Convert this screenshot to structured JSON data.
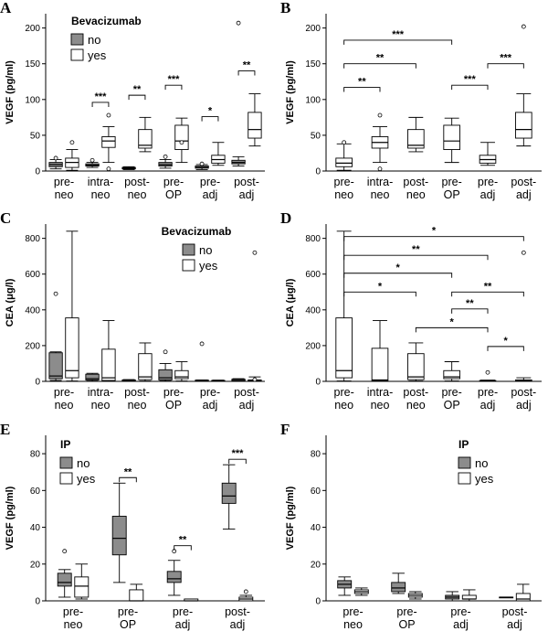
{
  "colors": {
    "group_a": "#8c8c8c",
    "group_b": "#ffffff",
    "stroke": "#000000"
  },
  "chart_data": [
    {
      "panel": "A",
      "type": "box",
      "ylabel": "VEGF (pg/ml)",
      "ylim": [
        0,
        220
      ],
      "yticks": [
        0,
        50,
        100,
        150,
        200
      ],
      "categories": [
        "pre-neo",
        "intra-neo",
        "post-neo",
        "pre-OP",
        "pre-adj",
        "post-adj"
      ],
      "legend": {
        "title": "Bevacizumab",
        "items": [
          "no",
          "yes"
        ],
        "pos": "top-left"
      },
      "series": [
        {
          "name": "no",
          "fill": "#8c8c8c",
          "boxes": [
            {
              "min": 3,
              "q1": 6,
              "med": 9,
              "q3": 12,
              "max": 16,
              "out": [
                18
              ]
            },
            {
              "min": 5,
              "q1": 7,
              "med": 8,
              "q3": 10,
              "max": 12,
              "out": [
                15
              ]
            },
            {
              "min": 2,
              "q1": 3,
              "med": 4,
              "q3": 5,
              "max": 6,
              "out": []
            },
            {
              "min": 4,
              "q1": 7,
              "med": 9,
              "q3": 12,
              "max": 16,
              "out": [
                20
              ]
            },
            {
              "min": 2,
              "q1": 4,
              "med": 5,
              "q3": 7,
              "max": 9,
              "out": [
                10
              ]
            },
            {
              "min": 7,
              "q1": 10,
              "med": 12,
              "q3": 15,
              "max": 20,
              "out": [
                207
              ]
            }
          ]
        },
        {
          "name": "yes",
          "fill": "#ffffff",
          "boxes": [
            {
              "min": 1,
              "q1": 5,
              "med": 12,
              "q3": 18,
              "max": 30,
              "out": [
                40
              ]
            },
            {
              "min": 12,
              "q1": 33,
              "med": 42,
              "q3": 48,
              "max": 62,
              "out": [
                78,
                3
              ]
            },
            {
              "min": 27,
              "q1": 32,
              "med": 36,
              "q3": 58,
              "max": 75,
              "out": []
            },
            {
              "min": 12,
              "q1": 30,
              "med": 42,
              "q3": 64,
              "max": 74,
              "out": [
                40
              ]
            },
            {
              "min": 8,
              "q1": 11,
              "med": 16,
              "q3": 22,
              "max": 40,
              "out": []
            },
            {
              "min": 35,
              "q1": 46,
              "med": 58,
              "q3": 82,
              "max": 108,
              "out": []
            }
          ]
        }
      ],
      "sig": [
        {
          "from": 1,
          "to": 1,
          "mode": "pair",
          "y": 96,
          "stars": "***"
        },
        {
          "from": 2,
          "to": 2,
          "mode": "pair",
          "y": 106,
          "stars": "**"
        },
        {
          "from": 3,
          "to": 3,
          "mode": "pair",
          "y": 120,
          "stars": "***"
        },
        {
          "from": 4,
          "to": 4,
          "mode": "pair",
          "y": 76,
          "stars": "*"
        },
        {
          "from": 5,
          "to": 5,
          "mode": "pair",
          "y": 140,
          "stars": "**"
        }
      ]
    },
    {
      "panel": "B",
      "type": "box",
      "ylabel": "VEGF (pg/ml)",
      "ylim": [
        0,
        220
      ],
      "yticks": [
        0,
        50,
        100,
        150,
        200
      ],
      "categories": [
        "pre-neo",
        "intra-neo",
        "post-neo",
        "pre-OP",
        "pre-adj",
        "post-adj"
      ],
      "series": [
        {
          "name": "all",
          "fill": "#ffffff",
          "boxes": [
            {
              "min": 1,
              "q1": 6,
              "med": 11,
              "q3": 18,
              "max": 38,
              "out": [
                40
              ]
            },
            {
              "min": 12,
              "q1": 32,
              "med": 40,
              "q3": 48,
              "max": 62,
              "out": [
                78,
                3
              ]
            },
            {
              "min": 27,
              "q1": 32,
              "med": 36,
              "q3": 58,
              "max": 75,
              "out": []
            },
            {
              "min": 12,
              "q1": 30,
              "med": 42,
              "q3": 64,
              "max": 74,
              "out": []
            },
            {
              "min": 8,
              "q1": 11,
              "med": 16,
              "q3": 22,
              "max": 40,
              "out": []
            },
            {
              "min": 35,
              "q1": 46,
              "med": 58,
              "q3": 82,
              "max": 108,
              "out": [
                202
              ]
            }
          ]
        }
      ],
      "sig": [
        {
          "from": 0,
          "to": 3,
          "mode": "span",
          "y": 183,
          "stars": "***"
        },
        {
          "from": 0,
          "to": 2,
          "mode": "span",
          "y": 150,
          "stars": "**"
        },
        {
          "from": 0,
          "to": 1,
          "mode": "span",
          "y": 117,
          "stars": "**"
        },
        {
          "from": 3,
          "to": 4,
          "mode": "span",
          "y": 120,
          "stars": "***"
        },
        {
          "from": 4,
          "to": 5,
          "mode": "span",
          "y": 150,
          "stars": "***"
        }
      ]
    },
    {
      "panel": "C",
      "type": "box",
      "ylabel": "CEA (μg/l)",
      "ylim": [
        0,
        880
      ],
      "yticks": [
        0,
        200,
        400,
        600,
        800
      ],
      "categories": [
        "pre-neo",
        "intra-neo",
        "post-neo",
        "pre-OP",
        "pre-adj",
        "post-adj"
      ],
      "legend": {
        "title": "Bevacizumab",
        "items": [
          "no",
          "yes"
        ],
        "pos": "top-right"
      },
      "series": [
        {
          "name": "no",
          "fill": "#8c8c8c",
          "boxes": [
            {
              "min": 5,
              "q1": 15,
              "med": 30,
              "q3": 160,
              "max": 165,
              "out": [
                490
              ]
            },
            {
              "min": 2,
              "q1": 8,
              "med": 15,
              "q3": 40,
              "max": 45,
              "out": []
            },
            {
              "min": 1,
              "q1": 2,
              "med": 4,
              "q3": 8,
              "max": 10,
              "out": []
            },
            {
              "min": 2,
              "q1": 8,
              "med": 20,
              "q3": 65,
              "max": 100,
              "out": [
                165
              ]
            },
            {
              "min": 1,
              "q1": 2,
              "med": 4,
              "q3": 7,
              "max": 8,
              "out": [
                210
              ]
            },
            {
              "min": 1,
              "q1": 3,
              "med": 5,
              "q3": 12,
              "max": 15,
              "out": []
            }
          ]
        },
        {
          "name": "yes",
          "fill": "#ffffff",
          "boxes": [
            {
              "min": 2,
              "q1": 20,
              "med": 60,
              "q3": 355,
              "max": 840,
              "out": []
            },
            {
              "min": 1,
              "q1": 5,
              "med": 20,
              "q3": 180,
              "max": 340,
              "out": []
            },
            {
              "min": 2,
              "q1": 10,
              "med": 25,
              "q3": 155,
              "max": 215,
              "out": []
            },
            {
              "min": 2,
              "q1": 15,
              "med": 25,
              "q3": 60,
              "max": 110,
              "out": []
            },
            {
              "min": 1,
              "q1": 2,
              "med": 3,
              "q3": 5,
              "max": 7,
              "out": []
            },
            {
              "min": 1,
              "q1": 2,
              "med": 4,
              "q3": 8,
              "max": 25,
              "out": [
                10,
                720
              ]
            }
          ]
        }
      ],
      "sig": []
    },
    {
      "panel": "D",
      "type": "box",
      "ylabel": "CEA (μg/l)",
      "ylim": [
        0,
        880
      ],
      "yticks": [
        0,
        200,
        400,
        600,
        800
      ],
      "categories": [
        "pre-neo",
        "intra-neo",
        "post-neo",
        "pre-OP",
        "pre-adj",
        "post-adj"
      ],
      "series": [
        {
          "name": "all",
          "fill": "#ffffff",
          "boxes": [
            {
              "min": 2,
              "q1": 20,
              "med": 60,
              "q3": 355,
              "max": 840,
              "out": []
            },
            {
              "min": 1,
              "q1": 5,
              "med": 8,
              "q3": 185,
              "max": 340,
              "out": []
            },
            {
              "min": 2,
              "q1": 10,
              "med": 25,
              "q3": 155,
              "max": 215,
              "out": []
            },
            {
              "min": 2,
              "q1": 15,
              "med": 25,
              "q3": 60,
              "max": 110,
              "out": []
            },
            {
              "min": 1,
              "q1": 2,
              "med": 3,
              "q3": 5,
              "max": 7,
              "out": [
                50
              ]
            },
            {
              "min": 1,
              "q1": 2,
              "med": 4,
              "q3": 8,
              "max": 20,
              "out": [
                720
              ]
            }
          ]
        }
      ],
      "sig": [
        {
          "from": 0,
          "to": 5,
          "mode": "span",
          "y": 810,
          "stars": "*"
        },
        {
          "from": 0,
          "to": 4,
          "mode": "span",
          "y": 705,
          "stars": "**"
        },
        {
          "from": 0,
          "to": 3,
          "mode": "span",
          "y": 605,
          "stars": "*"
        },
        {
          "from": 0,
          "to": 2,
          "mode": "span",
          "y": 500,
          "stars": "*"
        },
        {
          "from": 3,
          "to": 5,
          "mode": "span",
          "y": 500,
          "stars": "**"
        },
        {
          "from": 3,
          "to": 4,
          "mode": "span",
          "y": 405,
          "stars": "**"
        },
        {
          "from": 2,
          "to": 4,
          "mode": "span",
          "y": 300,
          "stars": "*"
        },
        {
          "from": 4,
          "to": 5,
          "mode": "span",
          "y": 195,
          "stars": "*"
        }
      ]
    },
    {
      "panel": "E",
      "type": "box",
      "ylabel": "VEGF (pg/ml)",
      "ylim": [
        0,
        90
      ],
      "yticks": [
        0,
        20,
        40,
        60,
        80
      ],
      "categories": [
        "pre-neo",
        "pre-OP",
        "pre-adj",
        "post-adj"
      ],
      "legend": {
        "title": "IP",
        "items": [
          "no",
          "yes"
        ],
        "pos": "top-left"
      },
      "series": [
        {
          "name": "no",
          "fill": "#8c8c8c",
          "boxes": [
            {
              "min": 2,
              "q1": 8,
              "med": 10,
              "q3": 15,
              "max": 17,
              "out": [
                27
              ]
            },
            {
              "min": 10,
              "q1": 25,
              "med": 34,
              "q3": 46,
              "max": 64,
              "out": []
            },
            {
              "min": 3,
              "q1": 10,
              "med": 12,
              "q3": 16,
              "max": 22,
              "out": [
                27
              ]
            },
            {
              "min": 39,
              "q1": 53,
              "med": 57,
              "q3": 64,
              "max": 74,
              "out": []
            }
          ]
        },
        {
          "name": "yes",
          "fill": "#ffffff",
          "boxes": [
            {
              "min": 1,
              "q1": 2,
              "med": 8,
              "q3": 13,
              "max": 20,
              "out": []
            },
            {
              "min": 0,
              "q1": 0,
              "med": 0,
              "q3": 6,
              "max": 9,
              "out": []
            },
            {
              "min": 0,
              "q1": 0,
              "med": 0,
              "q3": 1,
              "max": 1,
              "out": []
            },
            {
              "min": 0,
              "q1": 0,
              "med": 1,
              "q3": 2,
              "max": 3,
              "out": [
                5
              ]
            }
          ]
        }
      ],
      "sig": [
        {
          "from": 1,
          "to": 1,
          "mode": "pair",
          "y": 67,
          "stars": "**"
        },
        {
          "from": 2,
          "to": 2,
          "mode": "pair",
          "y": 30,
          "stars": "**"
        },
        {
          "from": 3,
          "to": 3,
          "mode": "pair",
          "y": 77,
          "stars": "***"
        }
      ]
    },
    {
      "panel": "F",
      "type": "box",
      "ylabel": "VEGF (pg/ml)",
      "ylim": [
        0,
        90
      ],
      "yticks": [
        0,
        20,
        40,
        60,
        80
      ],
      "categories": [
        "pre-neo",
        "pre-OP",
        "pre-adj",
        "post-adj"
      ],
      "legend": {
        "title": "IP",
        "items": [
          "no",
          "yes"
        ],
        "pos": "top-right"
      },
      "series": [
        {
          "name": "no",
          "fill": "#8c8c8c",
          "boxes": [
            {
              "min": 3,
              "q1": 7,
              "med": 9,
              "q3": 11,
              "max": 13,
              "out": []
            },
            {
              "min": 4,
              "q1": 5,
              "med": 7,
              "q3": 10,
              "max": 15,
              "out": []
            },
            {
              "min": 0,
              "q1": 1,
              "med": 2,
              "q3": 3,
              "max": 5,
              "out": []
            },
            {
              "min": 2,
              "q1": 2,
              "med": 2,
              "q3": 2,
              "max": 2,
              "out": []
            }
          ]
        },
        {
          "name": "yes",
          "fill": "#ffffff",
          "boxes": [
            {
              "min": 3,
              "q1": 4,
              "med": 5,
              "q3": 6,
              "max": 7,
              "out": []
            },
            {
              "min": 1,
              "q1": 2,
              "med": 3,
              "q3": 4,
              "max": 5,
              "out": []
            },
            {
              "min": 0,
              "q1": 1,
              "med": 1,
              "q3": 3,
              "max": 6,
              "out": []
            },
            {
              "min": 0,
              "q1": 0,
              "med": 1,
              "q3": 4,
              "max": 9,
              "out": []
            }
          ]
        }
      ],
      "sig": []
    }
  ]
}
